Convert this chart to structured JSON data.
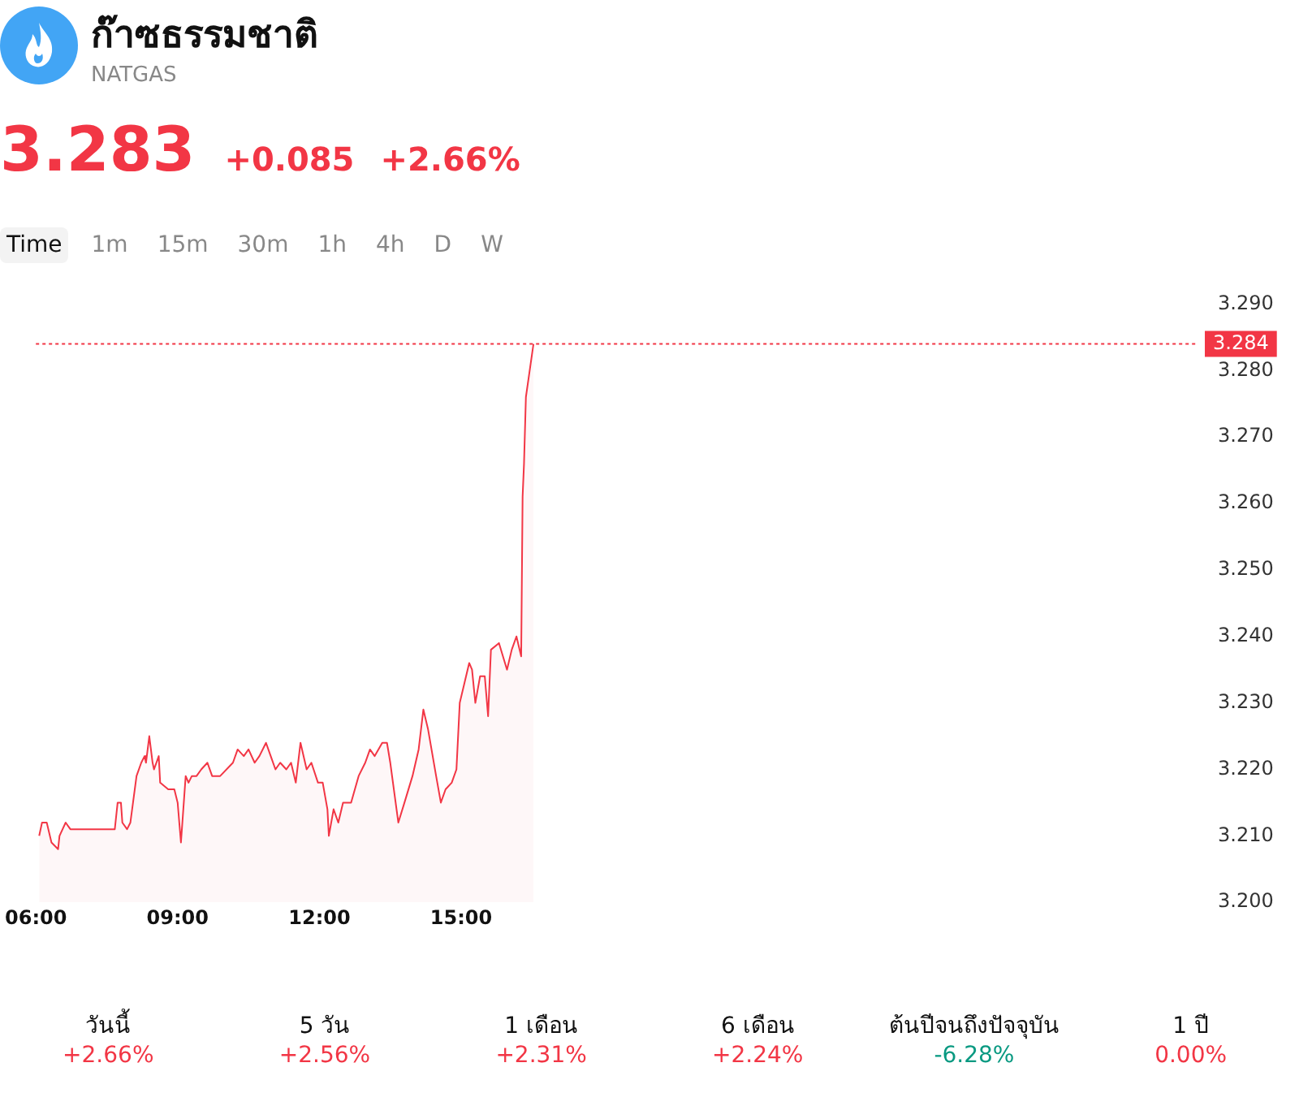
{
  "chart_data": {
    "type": "area",
    "title": "ก๊าซธรรมชาติ",
    "subtitle": "NATGAS",
    "annotations": [
      "3.283",
      "+0.085",
      "+2.66%",
      "Time",
      "1m",
      "15m",
      "30m",
      "1h",
      "4h",
      "D",
      "W",
      "วันนี้",
      "+2.66%",
      "5 วัน",
      "+2.56%",
      "1 เดือน",
      "+2.31%",
      "6 เดือน",
      "+2.24%",
      "ต้นปีจนถึงปัจจุบัน",
      "-6.28%",
      "1 ปี",
      "0.00%"
    ],
    "series": [
      {
        "color": "#f23645",
        "x": [
          6.07,
          6.13,
          6.23,
          6.33,
          6.47,
          6.5,
          6.63,
          6.73,
          6.8,
          7.67,
          7.73,
          7.8,
          7.83,
          7.93,
          8.0,
          8.13,
          8.23,
          8.3,
          8.33,
          8.4,
          8.47,
          8.5,
          8.6,
          8.63,
          8.8,
          8.93,
          9.0,
          9.07,
          9.17,
          9.23,
          9.3,
          9.4,
          9.5,
          9.63,
          9.73,
          9.9,
          10.17,
          10.27,
          10.4,
          10.5,
          10.63,
          10.73,
          10.87,
          10.97,
          11.07,
          11.17,
          11.3,
          11.4,
          11.5,
          11.6,
          11.73,
          11.83,
          11.97,
          12.07,
          12.17,
          12.2,
          12.3,
          12.4,
          12.5,
          12.67,
          12.83,
          12.97,
          13.07,
          13.17,
          13.33,
          13.43,
          13.5,
          13.67,
          13.8,
          13.97,
          14.1,
          14.2,
          14.3,
          14.47,
          14.57,
          14.67,
          14.8,
          14.9,
          14.97,
          15.07,
          15.17,
          15.23,
          15.3,
          15.4,
          15.5,
          15.57,
          15.63,
          15.8,
          15.97,
          16.07,
          16.17,
          16.27,
          16.3,
          16.33,
          16.37,
          16.47,
          16.53
        ],
        "values": [
          3.21,
          3.212,
          3.212,
          3.209,
          3.208,
          3.21,
          3.212,
          3.211,
          3.211,
          3.211,
          3.215,
          3.215,
          3.212,
          3.211,
          3.212,
          3.219,
          3.221,
          3.222,
          3.221,
          3.225,
          3.221,
          3.22,
          3.222,
          3.218,
          3.217,
          3.217,
          3.215,
          3.209,
          3.219,
          3.218,
          3.219,
          3.219,
          3.22,
          3.221,
          3.219,
          3.219,
          3.221,
          3.223,
          3.222,
          3.223,
          3.221,
          3.222,
          3.224,
          3.222,
          3.22,
          3.221,
          3.22,
          3.221,
          3.218,
          3.224,
          3.22,
          3.221,
          3.218,
          3.218,
          3.214,
          3.21,
          3.214,
          3.212,
          3.215,
          3.215,
          3.219,
          3.221,
          3.223,
          3.222,
          3.224,
          3.224,
          3.221,
          3.212,
          3.215,
          3.219,
          3.223,
          3.229,
          3.226,
          3.219,
          3.215,
          3.217,
          3.218,
          3.22,
          3.23,
          3.233,
          3.236,
          3.235,
          3.23,
          3.234,
          3.234,
          3.228,
          3.238,
          3.239,
          3.235,
          3.238,
          3.24,
          3.237,
          3.261,
          3.266,
          3.276,
          3.281,
          3.284
        ]
      }
    ],
    "xlim": [
      6,
      30.6
    ],
    "xticks": [
      {
        "value": 6,
        "label": "06:00"
      },
      {
        "value": 9,
        "label": "09:00"
      },
      {
        "value": 12,
        "label": "12:00"
      },
      {
        "value": 15,
        "label": "15:00"
      }
    ],
    "ylim": [
      3.2,
      3.29
    ],
    "yticks": [
      {
        "value": 3.2,
        "label": "3.200"
      },
      {
        "value": 3.21,
        "label": "3.210"
      },
      {
        "value": 3.22,
        "label": "3.220"
      },
      {
        "value": 3.23,
        "label": "3.230"
      },
      {
        "value": 3.24,
        "label": "3.240"
      },
      {
        "value": 3.25,
        "label": "3.250"
      },
      {
        "value": 3.26,
        "label": "3.260"
      },
      {
        "value": 3.27,
        "label": "3.270"
      },
      {
        "value": 3.28,
        "label": "3.280"
      },
      {
        "value": 3.29,
        "label": "3.290"
      }
    ],
    "ref_lines": [
      {
        "axis": "y",
        "value": 3.284,
        "label": "3.284",
        "color": "#f23645",
        "line_style": "dotted"
      }
    ],
    "grid": false,
    "legend": false
  }
}
